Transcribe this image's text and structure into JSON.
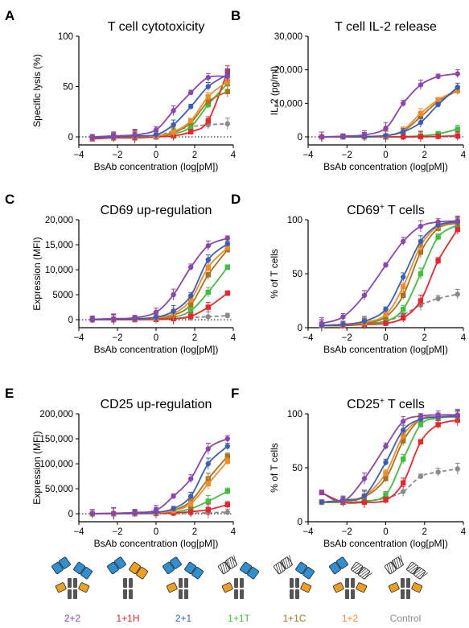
{
  "colors": {
    "2+2": "#8e44ad",
    "1+1H": "#e8262b",
    "2+1": "#3a5fb8",
    "1+1T": "#3fbf3f",
    "1+1C": "#a6731f",
    "1+2": "#f28c28",
    "Control": "#8a8a8a"
  },
  "legend": {
    "items": [
      {
        "label": "2+2",
        "color": "#8e44ad",
        "icon": "bsab-format-2-plus-2-icon"
      },
      {
        "label": "1+1H",
        "color": "#e8262b",
        "icon": "bsab-format-1-plus-1h-icon"
      },
      {
        "label": "2+1",
        "color": "#3a5fb8",
        "icon": "bsab-format-2-plus-1-icon"
      },
      {
        "label": "1+1T",
        "color": "#3fbf3f",
        "icon": "bsab-format-1-plus-1t-icon"
      },
      {
        "label": "1+1C",
        "color": "#a6731f",
        "icon": "bsab-format-1-plus-1c-icon"
      },
      {
        "label": "1+2",
        "color": "#f28c28",
        "icon": "bsab-format-1-plus-2-icon"
      },
      {
        "label": "Control",
        "color": "#8a8a8a",
        "icon": "bsab-format-control-icon"
      }
    ]
  },
  "chart_data": [
    {
      "letter": "A",
      "title": "T cell cytotoxicity",
      "title_sup": "",
      "title_rest": "",
      "type": "line",
      "xlabel": "BsAb concentration (log[pM])",
      "ylabel": "Specific lysis (%)",
      "xlim": [
        -4,
        4
      ],
      "ylim": [
        -8,
        100
      ],
      "yticks": [
        0,
        50,
        100
      ],
      "ytick_labels": [
        "0",
        "50",
        "100"
      ],
      "xticks": [
        -4,
        -2,
        0,
        2,
        4
      ],
      "baseline": 0,
      "x": [
        -3.3,
        -2.2,
        -1.1,
        0,
        0.9,
        1.8,
        2.7,
        3.7
      ],
      "series": [
        {
          "name": "2+2",
          "values": [
            0,
            1,
            2,
            7,
            26,
            44,
            59,
            60
          ]
        },
        {
          "name": "1+1H",
          "values": [
            -2,
            -1,
            -1,
            0,
            1,
            5,
            16,
            65
          ]
        },
        {
          "name": "2+1",
          "values": [
            -1,
            0,
            1,
            2,
            12,
            30,
            50,
            62
          ]
        },
        {
          "name": "1+1T",
          "values": [
            -1,
            -1,
            0,
            1,
            3,
            10,
            32,
            53
          ]
        },
        {
          "name": "1+1C",
          "values": [
            -1,
            0,
            0,
            1,
            4,
            14,
            35,
            45
          ]
        },
        {
          "name": "1+2",
          "values": [
            -1,
            0,
            1,
            1,
            5,
            16,
            40,
            55
          ]
        },
        {
          "name": "Control",
          "values": [
            -1,
            0,
            0,
            1,
            6,
            10,
            12,
            13
          ]
        }
      ]
    },
    {
      "letter": "B",
      "title": "T cell IL-2 release",
      "title_sup": "",
      "title_rest": "",
      "type": "line",
      "xlabel": "BsAb concentration (log[pM])",
      "ylabel": "IL-2 (pg/ml)",
      "xlim": [
        -4,
        4
      ],
      "ylim": [
        -2400,
        30000
      ],
      "yticks": [
        0,
        10000,
        20000,
        30000
      ],
      "ytick_labels": [
        "0",
        "10,000",
        "20,000",
        "30,000"
      ],
      "xticks": [
        -4,
        -2,
        0,
        2,
        4
      ],
      "baseline": 0,
      "x": [
        -3.3,
        -2.2,
        -1.1,
        0,
        0.9,
        1.8,
        2.7,
        3.7
      ],
      "series": [
        {
          "name": "2+2",
          "values": [
            0,
            200,
            600,
            2600,
            10000,
            15500,
            18000,
            18800
          ]
        },
        {
          "name": "1+1H",
          "values": [
            0,
            0,
            0,
            0,
            0,
            50,
            150,
            300
          ]
        },
        {
          "name": "2+1",
          "values": [
            0,
            0,
            100,
            400,
            1500,
            4300,
            9600,
            14800
          ]
        },
        {
          "name": "1+1T",
          "values": [
            0,
            0,
            0,
            0,
            100,
            300,
            900,
            2300
          ]
        },
        {
          "name": "1+1C",
          "values": [
            0,
            0,
            100,
            300,
            1700,
            6000,
            10500,
            13800
          ]
        },
        {
          "name": "1+2",
          "values": [
            0,
            0,
            100,
            300,
            2000,
            7000,
            11000,
            14000
          ]
        },
        {
          "name": "Control",
          "values": [
            0,
            0,
            0,
            0,
            0,
            0,
            50,
            100
          ]
        }
      ]
    },
    {
      "letter": "C",
      "title": "CD69 up-regulation",
      "title_sup": "",
      "title_rest": "",
      "type": "line",
      "xlabel": "BsAb concentration (log[pM])",
      "ylabel": "Expression (MFI)",
      "xlim": [
        -4,
        4
      ],
      "ylim": [
        -1600,
        20000
      ],
      "yticks": [
        0,
        5000,
        10000,
        15000,
        20000
      ],
      "ytick_labels": [
        "0",
        "5000",
        "10,000",
        "15,000",
        "20,000"
      ],
      "xticks": [
        -4,
        -2,
        0,
        2,
        4
      ],
      "baseline": 0,
      "x": [
        -3.3,
        -2.2,
        -1.1,
        0,
        0.9,
        1.8,
        2.7,
        3.7
      ],
      "series": [
        {
          "name": "2+2",
          "values": [
            100,
            200,
            400,
            1500,
            5000,
            10500,
            14800,
            16300
          ]
        },
        {
          "name": "1+1H",
          "values": [
            0,
            0,
            0,
            50,
            200,
            700,
            2500,
            5300
          ]
        },
        {
          "name": "2+1",
          "values": [
            0,
            100,
            200,
            500,
            1700,
            4800,
            12000,
            15200
          ]
        },
        {
          "name": "1+1T",
          "values": [
            0,
            0,
            100,
            200,
            500,
            1800,
            5500,
            10500
          ]
        },
        {
          "name": "1+1C",
          "values": [
            0,
            100,
            100,
            300,
            900,
            3000,
            9000,
            14000
          ]
        },
        {
          "name": "1+2",
          "values": [
            0,
            100,
            200,
            400,
            1200,
            4000,
            10500,
            14400
          ]
        },
        {
          "name": "Control",
          "values": [
            0,
            0,
            0,
            100,
            200,
            400,
            600,
            800
          ]
        }
      ]
    },
    {
      "letter": "D",
      "title": "CD69",
      "title_sup": "+",
      "title_rest": " T cells",
      "type": "line",
      "xlabel": "BsAb concentration (log[pM])",
      "ylabel": "% of T cells",
      "xlim": [
        -4,
        4
      ],
      "ylim": [
        0,
        100
      ],
      "yticks": [
        0,
        50,
        100
      ],
      "ytick_labels": [
        "0",
        "50",
        "100"
      ],
      "xticks": [
        -4,
        -2,
        0,
        2,
        4
      ],
      "baseline": null,
      "x": [
        -3.3,
        -2.2,
        -1.1,
        0,
        0.9,
        1.8,
        2.7,
        3.7
      ],
      "series": [
        {
          "name": "2+2",
          "values": [
            4,
            10,
            30,
            58,
            80,
            94,
            98,
            99
          ]
        },
        {
          "name": "1+1H",
          "values": [
            2,
            2,
            3,
            4,
            9,
            25,
            62,
            91
          ]
        },
        {
          "name": "2+1",
          "values": [
            2,
            3,
            6,
            17,
            47,
            80,
            95,
            98
          ]
        },
        {
          "name": "1+1T",
          "values": [
            2,
            2,
            4,
            6,
            17,
            50,
            84,
            95
          ]
        },
        {
          "name": "1+1C",
          "values": [
            2,
            3,
            4,
            10,
            30,
            70,
            92,
            97
          ]
        },
        {
          "name": "1+2",
          "values": [
            2,
            3,
            5,
            12,
            38,
            76,
            94,
            98
          ]
        },
        {
          "name": "Control",
          "values": [
            2,
            3,
            4,
            6,
            12,
            21,
            27,
            31
          ]
        }
      ]
    },
    {
      "letter": "E",
      "title": "CD25 up-regulation",
      "title_sup": "",
      "title_rest": "",
      "type": "line",
      "xlabel": "BsAb concentration (log[pM])",
      "ylabel": "Expression (MFI)",
      "xlim": [
        -4,
        4
      ],
      "ylim": [
        -16000,
        200000
      ],
      "yticks": [
        0,
        50000,
        100000,
        150000,
        200000
      ],
      "ytick_labels": [
        "0",
        "50,000",
        "100,000",
        "150,000",
        "200,000"
      ],
      "xticks": [
        -4,
        -2,
        0,
        2,
        4
      ],
      "baseline": 0,
      "x": [
        -3.3,
        -2.2,
        -1.1,
        0,
        0.9,
        1.8,
        2.7,
        3.7
      ],
      "series": [
        {
          "name": "2+2",
          "values": [
            500,
            1000,
            2500,
            7000,
            35000,
            70000,
            130000,
            150000
          ]
        },
        {
          "name": "1+1H",
          "values": [
            0,
            0,
            0,
            500,
            1500,
            4000,
            8000,
            18000
          ]
        },
        {
          "name": "2+1",
          "values": [
            0,
            500,
            1000,
            3000,
            10000,
            35000,
            100000,
            135000
          ]
        },
        {
          "name": "1+1T",
          "values": [
            0,
            0,
            500,
            1000,
            3000,
            10000,
            25000,
            45000
          ]
        },
        {
          "name": "1+1C",
          "values": [
            0,
            500,
            500,
            2000,
            7000,
            25000,
            70000,
            115000
          ]
        },
        {
          "name": "1+2",
          "values": [
            0,
            500,
            500,
            2000,
            6000,
            20000,
            60000,
            105000
          ]
        },
        {
          "name": "Control",
          "values": [
            0,
            0,
            0,
            0,
            500,
            1000,
            2000,
            3000
          ]
        }
      ]
    },
    {
      "letter": "F",
      "title": "CD25",
      "title_sup": "+",
      "title_rest": " T cells",
      "type": "line",
      "xlabel": "BsAb concentration (log[pM])",
      "ylabel": "% of T cells",
      "xlim": [
        -4,
        4
      ],
      "ylim": [
        0,
        100
      ],
      "yticks": [
        0,
        50,
        100
      ],
      "ytick_labels": [
        "0",
        "50",
        "100"
      ],
      "xticks": [
        -4,
        -2,
        0,
        2,
        4
      ],
      "baseline": null,
      "x": [
        -3.3,
        -2.2,
        -1.1,
        0,
        0.9,
        1.8,
        2.7,
        3.7
      ],
      "series": [
        {
          "name": "2+2",
          "values": [
            27,
            19,
            40,
            70,
            93,
            98,
            99,
            99
          ]
        },
        {
          "name": "1+1H",
          "values": [
            27,
            18,
            18,
            20,
            36,
            74,
            90,
            94
          ]
        },
        {
          "name": "2+1",
          "values": [
            18,
            20,
            24,
            55,
            85,
            95,
            97,
            98
          ]
        },
        {
          "name": "1+1T",
          "values": [
            18,
            18,
            19,
            25,
            58,
            90,
            96,
            98
          ]
        },
        {
          "name": "1+1C",
          "values": [
            18,
            19,
            23,
            40,
            75,
            95,
            97,
            97
          ]
        },
        {
          "name": "1+2",
          "values": [
            18,
            20,
            24,
            45,
            80,
            95,
            97,
            98
          ]
        },
        {
          "name": "Control",
          "values": [
            18,
            18,
            19,
            22,
            28,
            42,
            46,
            49
          ]
        }
      ]
    }
  ]
}
